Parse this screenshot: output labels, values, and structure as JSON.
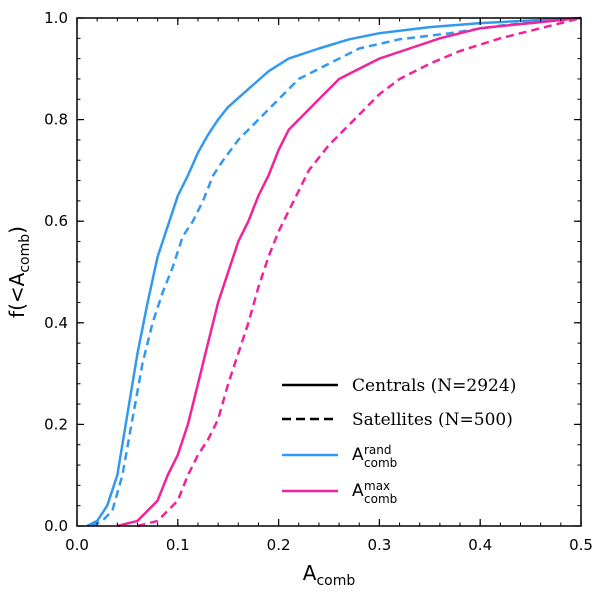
{
  "chart_data": {
    "type": "line",
    "title": "",
    "xlabel": {
      "main": "A",
      "sub": "comb"
    },
    "ylabel": {
      "prefix": "f(<A",
      "sub": "comb",
      "suffix": ")"
    },
    "xlim": [
      0.0,
      0.5
    ],
    "ylim": [
      0.0,
      1.0
    ],
    "xticks": [
      "0.0",
      "0.1",
      "0.2",
      "0.3",
      "0.4",
      "0.5"
    ],
    "yticks": [
      "0.0",
      "0.2",
      "0.4",
      "0.6",
      "0.8",
      "1.0"
    ],
    "grid": false,
    "legend_position": "bottom-right",
    "legend": [
      {
        "label": "Centrals (N=2924)",
        "style": "solid"
      },
      {
        "label": "Satellites (N=500)",
        "style": "dashed"
      },
      {
        "label_main": "A",
        "label_sub": "comb",
        "label_sup": "rand",
        "color": "#3399f0"
      },
      {
        "label_main": "A",
        "label_sub": "comb",
        "label_sup": "max",
        "color": "#f0239b"
      }
    ],
    "series": [
      {
        "linestyle": "solid",
        "color": "#3399f0",
        "points": [
          [
            0.01,
            0.0
          ],
          [
            0.02,
            0.01
          ],
          [
            0.03,
            0.04
          ],
          [
            0.04,
            0.1
          ],
          [
            0.05,
            0.22
          ],
          [
            0.06,
            0.34
          ],
          [
            0.07,
            0.44
          ],
          [
            0.08,
            0.53
          ],
          [
            0.09,
            0.59
          ],
          [
            0.1,
            0.65
          ],
          [
            0.11,
            0.69
          ],
          [
            0.12,
            0.735
          ],
          [
            0.13,
            0.77
          ],
          [
            0.14,
            0.8
          ],
          [
            0.15,
            0.825
          ],
          [
            0.17,
            0.86
          ],
          [
            0.19,
            0.895
          ],
          [
            0.21,
            0.92
          ],
          [
            0.24,
            0.94
          ],
          [
            0.27,
            0.958
          ],
          [
            0.3,
            0.97
          ],
          [
            0.35,
            0.982
          ],
          [
            0.4,
            0.99
          ],
          [
            0.45,
            0.995
          ],
          [
            0.5,
            1.0
          ]
        ]
      },
      {
        "linestyle": "dashed",
        "color": "#3399f0",
        "points": [
          [
            0.015,
            0.0
          ],
          [
            0.025,
            0.01
          ],
          [
            0.035,
            0.03
          ],
          [
            0.045,
            0.1
          ],
          [
            0.055,
            0.21
          ],
          [
            0.065,
            0.32
          ],
          [
            0.075,
            0.4
          ],
          [
            0.085,
            0.46
          ],
          [
            0.095,
            0.51
          ],
          [
            0.105,
            0.57
          ],
          [
            0.115,
            0.6
          ],
          [
            0.125,
            0.64
          ],
          [
            0.135,
            0.69
          ],
          [
            0.145,
            0.72
          ],
          [
            0.16,
            0.76
          ],
          [
            0.18,
            0.8
          ],
          [
            0.2,
            0.84
          ],
          [
            0.22,
            0.88
          ],
          [
            0.25,
            0.91
          ],
          [
            0.28,
            0.94
          ],
          [
            0.32,
            0.958
          ],
          [
            0.37,
            0.97
          ],
          [
            0.42,
            0.985
          ],
          [
            0.47,
            0.995
          ],
          [
            0.5,
            1.0
          ]
        ]
      },
      {
        "linestyle": "solid",
        "color": "#f0239b",
        "points": [
          [
            0.04,
            0.0
          ],
          [
            0.06,
            0.01
          ],
          [
            0.08,
            0.05
          ],
          [
            0.09,
            0.1
          ],
          [
            0.1,
            0.14
          ],
          [
            0.11,
            0.2
          ],
          [
            0.12,
            0.28
          ],
          [
            0.13,
            0.36
          ],
          [
            0.14,
            0.44
          ],
          [
            0.15,
            0.5
          ],
          [
            0.16,
            0.56
          ],
          [
            0.17,
            0.6
          ],
          [
            0.18,
            0.65
          ],
          [
            0.19,
            0.69
          ],
          [
            0.2,
            0.74
          ],
          [
            0.21,
            0.78
          ],
          [
            0.22,
            0.8
          ],
          [
            0.24,
            0.84
          ],
          [
            0.26,
            0.88
          ],
          [
            0.28,
            0.9
          ],
          [
            0.3,
            0.92
          ],
          [
            0.33,
            0.94
          ],
          [
            0.36,
            0.96
          ],
          [
            0.4,
            0.98
          ],
          [
            0.45,
            0.99
          ],
          [
            0.5,
            1.0
          ]
        ]
      },
      {
        "linestyle": "dashed",
        "color": "#f0239b",
        "points": [
          [
            0.06,
            0.0
          ],
          [
            0.08,
            0.01
          ],
          [
            0.1,
            0.05
          ],
          [
            0.11,
            0.1
          ],
          [
            0.12,
            0.14
          ],
          [
            0.13,
            0.17
          ],
          [
            0.14,
            0.21
          ],
          [
            0.15,
            0.28
          ],
          [
            0.16,
            0.34
          ],
          [
            0.17,
            0.4
          ],
          [
            0.18,
            0.47
          ],
          [
            0.19,
            0.53
          ],
          [
            0.2,
            0.58
          ],
          [
            0.21,
            0.62
          ],
          [
            0.22,
            0.66
          ],
          [
            0.23,
            0.7
          ],
          [
            0.25,
            0.75
          ],
          [
            0.27,
            0.79
          ],
          [
            0.3,
            0.85
          ],
          [
            0.32,
            0.88
          ],
          [
            0.35,
            0.91
          ],
          [
            0.38,
            0.935
          ],
          [
            0.42,
            0.96
          ],
          [
            0.46,
            0.98
          ],
          [
            0.5,
            1.0
          ]
        ]
      }
    ]
  }
}
